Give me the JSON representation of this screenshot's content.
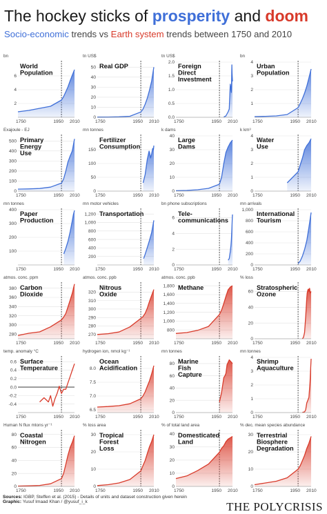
{
  "header": {
    "title_part1": "The hockey sticks of ",
    "title_prosperity": "prosperity",
    "title_and": " and ",
    "title_doom": "doom",
    "subtitle_soc": "Socio-economic",
    "subtitle_vs": " trends vs ",
    "subtitle_earth": "Earth system",
    "subtitle_rest": " trends between 1750 and 2010"
  },
  "footer": {
    "sources_label": "Sources:",
    "sources_text": " IGBP, Steffen et al. (2015) - Details of units and dataset construction given herein",
    "graphic_label": "Graphic:",
    "graphic_text": " Yusuf Imaad Khan / @yusuf_i_k",
    "brand": "THE POLYCRISIS"
  },
  "colors": {
    "socio": "#3f6fd8",
    "earth": "#d83a2a",
    "marker": "#222222"
  },
  "chart_data": [
    {
      "type": "area",
      "category": "socio",
      "unit": "bn",
      "title": [
        "World",
        "Population"
      ],
      "ylim": [
        0,
        8
      ],
      "yticks": [
        "2",
        "4",
        "6"
      ],
      "ytick_vals": [
        2,
        4,
        6
      ],
      "xticks": [
        "1750",
        "1950",
        "2010"
      ],
      "x": [
        1750,
        1800,
        1850,
        1900,
        1950,
        1960,
        1970,
        1980,
        1990,
        2000,
        2010
      ],
      "y": [
        0.8,
        1.0,
        1.3,
        1.6,
        2.5,
        3.0,
        3.7,
        4.4,
        5.3,
        6.1,
        6.9
      ]
    },
    {
      "type": "area",
      "category": "socio",
      "unit": "tn US$",
      "title": [
        "Real GDP"
      ],
      "ylim": [
        0,
        55
      ],
      "yticks": [
        "0",
        "10",
        "20",
        "30",
        "40",
        "50"
      ],
      "ytick_vals": [
        0,
        10,
        20,
        30,
        40,
        50
      ],
      "xticks": [
        "1750",
        "1950",
        "2010"
      ],
      "x": [
        1750,
        1800,
        1850,
        1900,
        1950,
        1960,
        1970,
        1980,
        1990,
        2000,
        2010
      ],
      "y": [
        0.2,
        0.3,
        0.5,
        1.0,
        5.3,
        8,
        13,
        19,
        27,
        36,
        50
      ]
    },
    {
      "type": "area",
      "category": "socio",
      "unit": "tn US$",
      "title": [
        "Foreign",
        "Direct",
        "Investment"
      ],
      "ylim": [
        0,
        2
      ],
      "yticks": [
        "0.0",
        "0.5",
        "1.0",
        "1.5",
        "2.0"
      ],
      "ytick_vals": [
        0,
        0.5,
        1,
        1.5,
        2
      ],
      "xticks": [
        "1750",
        "1950",
        "2010"
      ],
      "x": [
        1970,
        1980,
        1990,
        1995,
        2000,
        2005,
        2007,
        2008,
        2010
      ],
      "y": [
        0.01,
        0.05,
        0.2,
        0.3,
        1.2,
        0.9,
        1.9,
        1.6,
        1.3
      ]
    },
    {
      "type": "area",
      "category": "socio",
      "unit": "bn",
      "title": [
        "Urban",
        "Population"
      ],
      "ylim": [
        0,
        4
      ],
      "yticks": [
        "1",
        "2",
        "3",
        "4"
      ],
      "ytick_vals": [
        1,
        2,
        3,
        4
      ],
      "xticks": [
        "1750",
        "1950",
        "2010"
      ],
      "x": [
        1750,
        1800,
        1850,
        1900,
        1950,
        1960,
        1970,
        1980,
        1990,
        2000,
        2010
      ],
      "y": [
        0.05,
        0.07,
        0.1,
        0.2,
        0.7,
        1.0,
        1.35,
        1.75,
        2.25,
        2.85,
        3.5
      ]
    },
    {
      "type": "area",
      "category": "socio",
      "unit": "Exajoule - EJ",
      "title": [
        "Primary",
        "Energy",
        "Use"
      ],
      "ylim": [
        0,
        550
      ],
      "yticks": [
        "0",
        "100",
        "200",
        "300",
        "400",
        "500"
      ],
      "ytick_vals": [
        0,
        100,
        200,
        300,
        400,
        500
      ],
      "xticks": [
        "1750",
        "1950",
        "2010"
      ],
      "x": [
        1750,
        1800,
        1850,
        1900,
        1950,
        1960,
        1970,
        1980,
        1990,
        2000,
        2010
      ],
      "y": [
        20,
        22,
        26,
        40,
        80,
        120,
        200,
        290,
        350,
        400,
        520
      ]
    },
    {
      "type": "area",
      "category": "socio",
      "unit": "mn tonnes",
      "title": [
        "Fertilizer",
        "Consumption"
      ],
      "ylim": [
        0,
        200
      ],
      "yticks": [
        "0",
        "50",
        "100",
        "150"
      ],
      "ytick_vals": [
        0,
        50,
        100,
        150
      ],
      "xticks": [
        "1750",
        "1950",
        "2010"
      ],
      "x": [
        1961,
        1970,
        1980,
        1988,
        1990,
        1995,
        2000,
        2005,
        2008,
        2010
      ],
      "y": [
        30,
        60,
        115,
        145,
        140,
        120,
        135,
        155,
        150,
        165
      ]
    },
    {
      "type": "area",
      "category": "socio",
      "unit": "k dams",
      "title": [
        "Large",
        "Dams"
      ],
      "ylim": [
        0,
        40
      ],
      "yticks": [
        "0",
        "10",
        "20",
        "30",
        "40"
      ],
      "ytick_vals": [
        0,
        10,
        20,
        30,
        40
      ],
      "xticks": [
        "1750",
        "1950",
        "2010"
      ],
      "x": [
        1750,
        1800,
        1850,
        1900,
        1950,
        1960,
        1970,
        1980,
        1990,
        2000,
        2010
      ],
      "y": [
        0.3,
        0.5,
        1,
        2,
        5,
        10,
        20,
        28,
        32,
        35,
        37
      ]
    },
    {
      "type": "area",
      "category": "socio",
      "unit": "k km³",
      "title": [
        "Water",
        "Use"
      ],
      "ylim": [
        0,
        4
      ],
      "yticks": [
        "0",
        "1",
        "2",
        "3",
        "4"
      ],
      "ytick_vals": [
        0,
        1,
        2,
        3,
        4
      ],
      "xticks": [
        "1750",
        "1950",
        "2010"
      ],
      "x": [
        1900,
        1950,
        1960,
        1970,
        1980,
        1990,
        2000,
        2010
      ],
      "y": [
        0.6,
        1.4,
        1.9,
        2.4,
        3.0,
        3.3,
        3.5,
        3.8
      ]
    },
    {
      "type": "area",
      "category": "socio",
      "unit": "mn tonnes",
      "title": [
        "Paper",
        "Production"
      ],
      "ylim": [
        0,
        400
      ],
      "yticks": [
        "100",
        "200",
        "300",
        "400"
      ],
      "ytick_vals": [
        100,
        200,
        300,
        400
      ],
      "xticks": [
        "1750",
        "1950",
        "2010"
      ],
      "x": [
        1961,
        1970,
        1980,
        1990,
        2000,
        2005,
        2010
      ],
      "y": [
        80,
        120,
        170,
        240,
        320,
        365,
        395
      ]
    },
    {
      "type": "area",
      "category": "socio",
      "unit": "mn motor vehicles",
      "title": [
        "Transportation"
      ],
      "ylim": [
        0,
        1300
      ],
      "yticks": [
        "200",
        "400",
        "600",
        "800",
        "1,000",
        "1,200"
      ],
      "ytick_vals": [
        200,
        400,
        600,
        800,
        1000,
        1200
      ],
      "xticks": [
        "1750",
        "1950",
        "2010"
      ],
      "x": [
        1963,
        1970,
        1980,
        1990,
        2000,
        2010
      ],
      "y": [
        150,
        250,
        410,
        580,
        760,
        1050
      ]
    },
    {
      "type": "area",
      "category": "socio",
      "unit": "bn phone subscriptions",
      "title": [
        "Tele-",
        "communications"
      ],
      "ylim": [
        0,
        7
      ],
      "yticks": [
        "0",
        "2",
        "4",
        "6"
      ],
      "ytick_vals": [
        0,
        2,
        4,
        6
      ],
      "xticks": [
        "1750",
        "1950",
        "2010"
      ],
      "x": [
        1990,
        1995,
        2000,
        2003,
        2005,
        2007,
        2009,
        2010
      ],
      "y": [
        0.6,
        0.8,
        1.7,
        2.5,
        3.2,
        4.5,
        5.9,
        6.4
      ]
    },
    {
      "type": "area",
      "category": "socio",
      "unit": "mn arrivals",
      "title": [
        "International",
        "Tourism"
      ],
      "ylim": [
        0,
        1000
      ],
      "yticks": [
        "0",
        "200",
        "400",
        "600",
        "800",
        "1,000"
      ],
      "ytick_vals": [
        0,
        200,
        400,
        600,
        800,
        1000
      ],
      "xticks": [
        "1750",
        "1950",
        "2010"
      ],
      "x": [
        1950,
        1960,
        1970,
        1980,
        1990,
        2000,
        2010
      ],
      "y": [
        25,
        70,
        160,
        280,
        440,
        680,
        950
      ]
    },
    {
      "type": "area",
      "category": "earth",
      "unit": "atmos. conc. ppm",
      "title": [
        "Carbon",
        "Dioxide"
      ],
      "ylim": [
        270,
        390
      ],
      "yticks": [
        "280",
        "300",
        "320",
        "340",
        "360",
        "380"
      ],
      "ytick_vals": [
        280,
        300,
        320,
        340,
        360,
        380
      ],
      "xticks": [
        "1750",
        "1950",
        "2010"
      ],
      "x": [
        1750,
        1800,
        1850,
        1900,
        1950,
        1960,
        1970,
        1980,
        1990,
        2000,
        2010
      ],
      "y": [
        277,
        282,
        285,
        296,
        311,
        317,
        325,
        339,
        354,
        369,
        389
      ]
    },
    {
      "type": "area",
      "category": "earth",
      "unit": "atmos. conc. ppb",
      "title": [
        "Nitrous",
        "Oxide"
      ],
      "ylim": [
        265,
        330
      ],
      "yticks": [
        "270",
        "280",
        "290",
        "300",
        "310",
        "320"
      ],
      "ytick_vals": [
        270,
        280,
        290,
        300,
        310,
        320
      ],
      "xticks": [
        "1750",
        "1950",
        "2010"
      ],
      "x": [
        1750,
        1800,
        1850,
        1900,
        1950,
        1960,
        1970,
        1980,
        1990,
        2000,
        2010
      ],
      "y": [
        270,
        271,
        273,
        279,
        289,
        291,
        295,
        301,
        309,
        316,
        323
      ]
    },
    {
      "type": "area",
      "category": "earth",
      "unit": "atmos. conc. ppb",
      "title": [
        "Methane"
      ],
      "ylim": [
        600,
        1850
      ],
      "yticks": [
        "800",
        "1,000",
        "1,200",
        "1,400",
        "1,600",
        "1,800"
      ],
      "ytick_vals": [
        800,
        1000,
        1200,
        1400,
        1600,
        1800
      ],
      "xticks": [
        "1750",
        "1950",
        "2010"
      ],
      "x": [
        1750,
        1800,
        1850,
        1900,
        1950,
        1960,
        1970,
        1980,
        1990,
        2000,
        2010
      ],
      "y": [
        720,
        740,
        790,
        880,
        1150,
        1250,
        1400,
        1560,
        1710,
        1770,
        1800
      ]
    },
    {
      "type": "area",
      "category": "earth",
      "unit": "% loss",
      "title": [
        "Stratospheric",
        "Ozone"
      ],
      "ylim": [
        0,
        70
      ],
      "yticks": [
        "0",
        "20",
        "40",
        "60"
      ],
      "ytick_vals": [
        0,
        20,
        40,
        60
      ],
      "xticks": [
        "1750",
        "1950",
        "2010"
      ],
      "x": [
        1970,
        1975,
        1980,
        1985,
        1990,
        1992,
        1995,
        1998,
        2000,
        2003,
        2006,
        2010
      ],
      "y": [
        0,
        2,
        8,
        28,
        52,
        58,
        62,
        63,
        60,
        64,
        58,
        60
      ]
    },
    {
      "type": "line",
      "category": "earth",
      "unit": "temp. anomaly °C",
      "title": [
        "Surface",
        "Temperature"
      ],
      "ylim": [
        -0.6,
        0.7
      ],
      "yticks": [
        "-0.4",
        "-0.2",
        "0.0",
        "0.2",
        "0.4",
        "0.6"
      ],
      "ytick_vals": [
        -0.4,
        -0.2,
        0,
        0.2,
        0.4,
        0.6
      ],
      "xticks": [
        "1750",
        "1950",
        "2010"
      ],
      "x": [
        1850,
        1860,
        1870,
        1880,
        1890,
        1900,
        1910,
        1920,
        1930,
        1940,
        1950,
        1960,
        1970,
        1980,
        1990,
        2000,
        2010
      ],
      "y": [
        -0.35,
        -0.3,
        -0.25,
        -0.3,
        -0.35,
        -0.2,
        -0.45,
        -0.28,
        -0.15,
        0.02,
        -0.15,
        -0.05,
        -0.05,
        0.1,
        0.25,
        0.4,
        0.55
      ]
    },
    {
      "type": "area",
      "category": "earth",
      "unit": "hydrogen ion, nmol kg⁻¹",
      "title": [
        "Ocean",
        "Acidification"
      ],
      "ylim": [
        6.4,
        8.4
      ],
      "yticks": [
        "6.5",
        "7.0",
        "7.5",
        "8.0"
      ],
      "ytick_vals": [
        6.5,
        7.0,
        7.5,
        8.0
      ],
      "xticks": [
        "1750",
        "1950",
        "2010"
      ],
      "x": [
        1750,
        1800,
        1850,
        1900,
        1950,
        1960,
        1970,
        1980,
        1990,
        2000,
        2010
      ],
      "y": [
        6.6,
        6.62,
        6.65,
        6.72,
        6.9,
        7.0,
        7.15,
        7.35,
        7.55,
        7.8,
        8.1
      ]
    },
    {
      "type": "area",
      "category": "earth",
      "unit": "mn tonnes",
      "title": [
        "Marine",
        "Fish",
        "Capture"
      ],
      "ylim": [
        0,
        90
      ],
      "yticks": [
        "0",
        "20",
        "40",
        "60",
        "80"
      ],
      "ytick_vals": [
        0,
        20,
        40,
        60,
        80
      ],
      "xticks": [
        "1750",
        "1950",
        "2010"
      ],
      "x": [
        1950,
        1960,
        1970,
        1975,
        1980,
        1985,
        1990,
        1995,
        2000,
        2005,
        2010
      ],
      "y": [
        17,
        33,
        57,
        60,
        64,
        78,
        82,
        86,
        84,
        82,
        80
      ]
    },
    {
      "type": "area",
      "category": "earth",
      "unit": "mn tonnes",
      "title": [
        "Shrimp",
        "Aquaculture"
      ],
      "ylim": [
        0,
        4
      ],
      "yticks": [
        "0",
        "1",
        "2",
        "3",
        "4"
      ],
      "ytick_vals": [
        0,
        1,
        2,
        3,
        4
      ],
      "xticks": [
        "1750",
        "1950",
        "2010"
      ],
      "x": [
        1970,
        1980,
        1985,
        1990,
        1995,
        2000,
        2005,
        2008,
        2010
      ],
      "y": [
        0.02,
        0.05,
        0.2,
        0.7,
        0.9,
        1.1,
        2.2,
        3.3,
        3.9
      ]
    },
    {
      "type": "area",
      "category": "earth",
      "unit": "Human N flux mtons yr⁻¹",
      "title": [
        "Coastal",
        "Nitrogen"
      ],
      "ylim": [
        0,
        85
      ],
      "yticks": [
        "0",
        "20",
        "40",
        "60",
        "80"
      ],
      "ytick_vals": [
        0,
        20,
        40,
        60,
        80
      ],
      "xticks": [
        "1750",
        "1950",
        "2010"
      ],
      "x": [
        1750,
        1800,
        1850,
        1900,
        1950,
        1960,
        1970,
        1980,
        1990,
        2000,
        2010
      ],
      "y": [
        0.5,
        0.8,
        1.5,
        4,
        12,
        20,
        34,
        48,
        60,
        68,
        78
      ]
    },
    {
      "type": "area",
      "category": "earth",
      "unit": "% loss area",
      "title": [
        "Tropical",
        "Forest",
        "Loss"
      ],
      "ylim": [
        0,
        32
      ],
      "yticks": [
        "0",
        "10",
        "20",
        "30"
      ],
      "ytick_vals": [
        0,
        10,
        20,
        30
      ],
      "xticks": [
        "1750",
        "1950",
        "2010"
      ],
      "x": [
        1750,
        1800,
        1850,
        1900,
        1950,
        1960,
        1970,
        1980,
        1990,
        2000,
        2010
      ],
      "y": [
        0.5,
        1,
        2,
        4,
        9,
        12,
        15,
        19,
        23,
        26,
        30
      ]
    },
    {
      "type": "area",
      "category": "earth",
      "unit": "% of total land area",
      "title": [
        "Domesticated",
        "Land"
      ],
      "ylim": [
        0,
        42
      ],
      "yticks": [
        "0",
        "10",
        "20",
        "30",
        "40"
      ],
      "ytick_vals": [
        0,
        10,
        20,
        30,
        40
      ],
      "xticks": [
        "1750",
        "1950",
        "2010"
      ],
      "x": [
        1750,
        1800,
        1850,
        1900,
        1950,
        1960,
        1970,
        1980,
        1990,
        2000,
        2010
      ],
      "y": [
        6,
        8,
        12,
        17,
        26,
        29,
        31,
        34,
        36,
        37,
        38
      ]
    },
    {
      "type": "area",
      "category": "earth",
      "unit": "% dec. mean species abundance",
      "title": [
        "Terrestrial",
        "Biosphere",
        "Degradation"
      ],
      "ylim": [
        0,
        32
      ],
      "yticks": [
        "0",
        "10",
        "20",
        "30"
      ],
      "ytick_vals": [
        0,
        10,
        20,
        30
      ],
      "xticks": [
        "1750",
        "1950",
        "2010"
      ],
      "x": [
        1750,
        1800,
        1850,
        1900,
        1950,
        1960,
        1970,
        1980,
        1990,
        2000,
        2010
      ],
      "y": [
        1,
        2,
        3,
        5,
        10,
        12,
        15,
        18,
        22,
        25,
        29
      ]
    }
  ]
}
